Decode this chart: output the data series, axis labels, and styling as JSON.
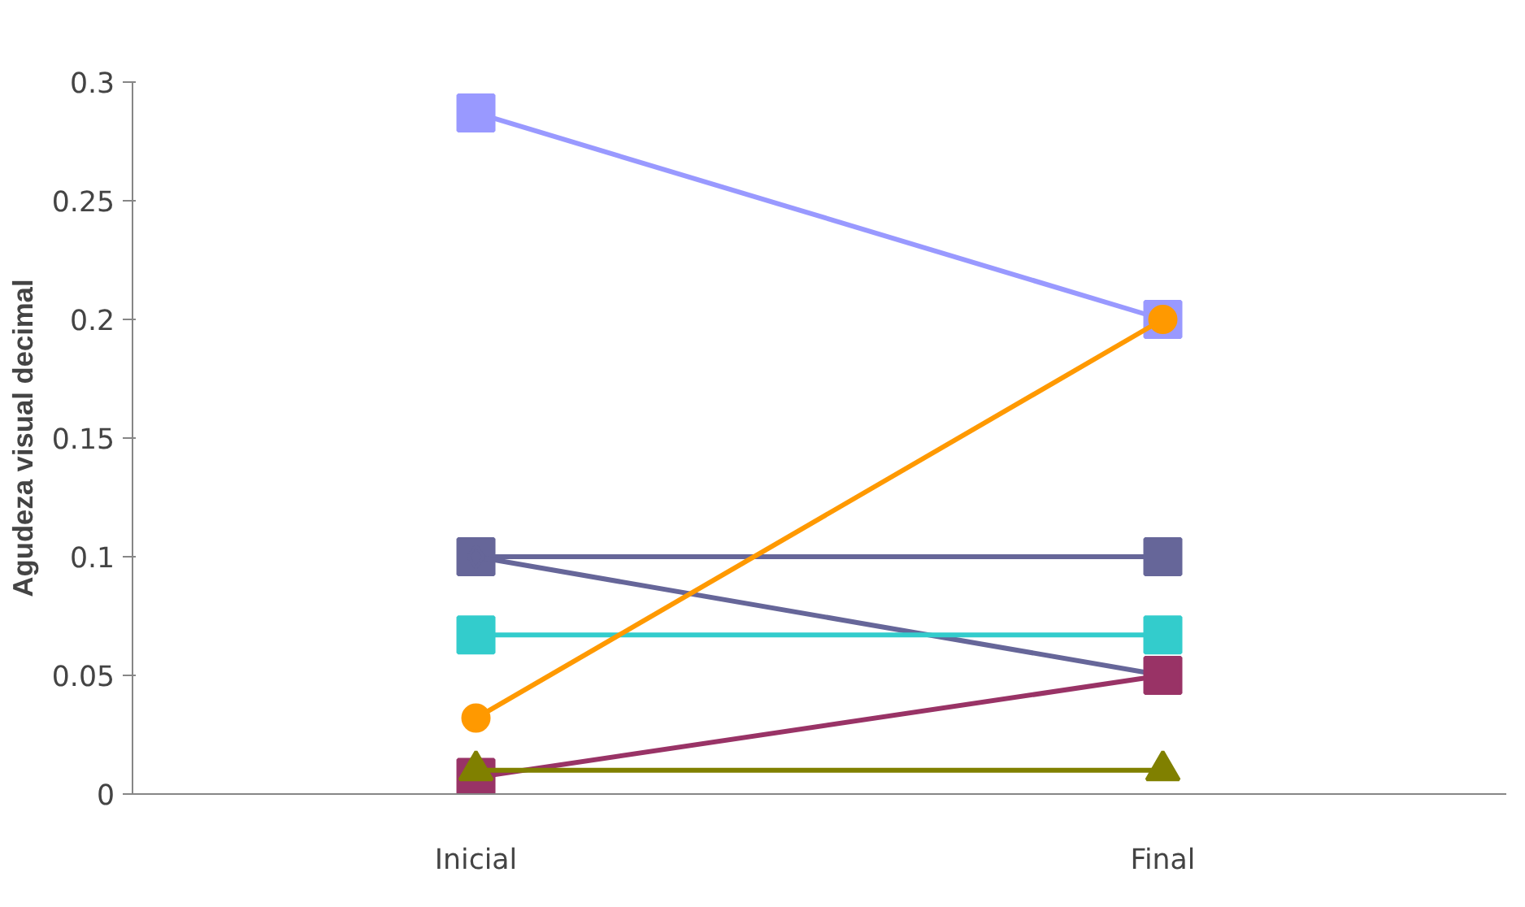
{
  "chart_data": {
    "type": "line",
    "ylabel": "Agudeza visual decimal",
    "categories": [
      "Inicial",
      "Final"
    ],
    "ylim": [
      0,
      0.3
    ],
    "yticks": [
      0,
      0.05,
      0.1,
      0.15,
      0.2,
      0.25,
      0.3
    ],
    "grid": false,
    "series": [
      {
        "color": "#9999ff",
        "marker": "square",
        "values": [
          0.287,
          0.2
        ]
      },
      {
        "color": "#666699",
        "marker": "square",
        "values": [
          0.1,
          0.1
        ]
      },
      {
        "color": "#666699",
        "marker": "diamond",
        "values": [
          0.1,
          0.05
        ]
      },
      {
        "color": "#33cccc",
        "marker": "square",
        "values": [
          0.067,
          0.067
        ]
      },
      {
        "color": "#ff9900",
        "marker": "circle",
        "values": [
          0.032,
          0.2
        ]
      },
      {
        "color": "#993366",
        "marker": "square",
        "values": [
          0.007,
          0.05
        ]
      },
      {
        "color": "#808000",
        "marker": "triangle",
        "values": [
          0.01,
          0.01
        ]
      }
    ]
  }
}
